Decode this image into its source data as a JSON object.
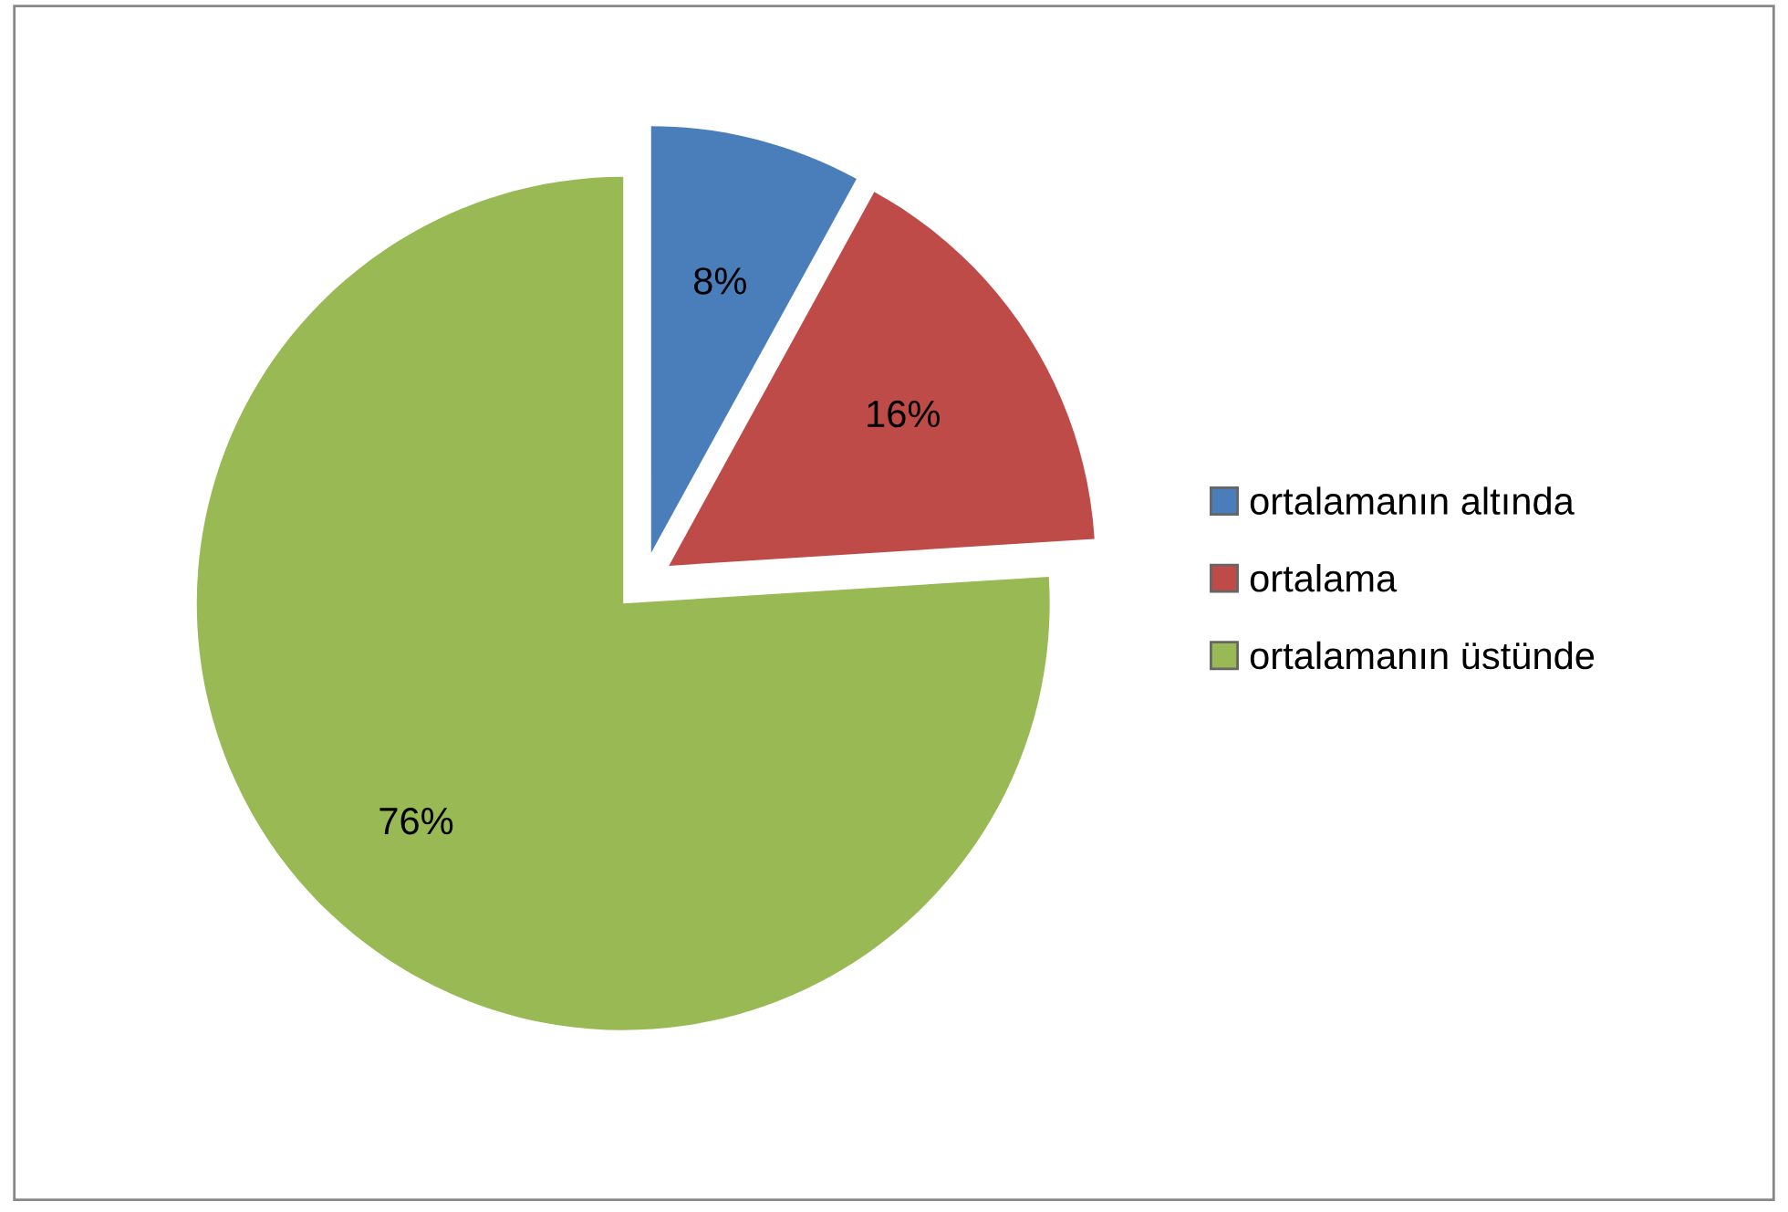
{
  "chart_data": {
    "type": "pie",
    "categories": [
      "ortalamanın altında",
      "ortalama",
      "ortalamanın üstünde"
    ],
    "values": [
      8,
      16,
      76
    ],
    "colors": [
      "#4a7ebb",
      "#be4b48",
      "#98b954"
    ],
    "value_labels": [
      "8%",
      "16%",
      "76%"
    ],
    "legend": "right"
  }
}
